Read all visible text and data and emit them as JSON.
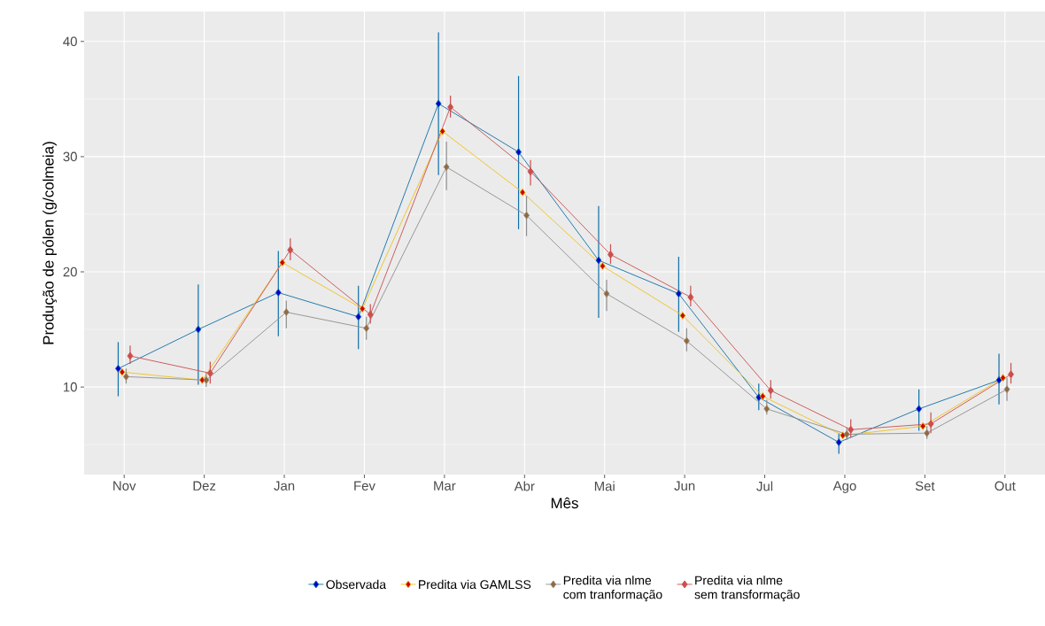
{
  "chart_data": {
    "type": "line",
    "xlabel": "Mês",
    "ylabel": "Produção de pólen (g/colmeia)",
    "categories": [
      "Nov",
      "Dez",
      "Jan",
      "Fev",
      "Mar",
      "Abr",
      "Mai",
      "Jun",
      "Jul",
      "Ago",
      "Set",
      "Out"
    ],
    "series": [
      {
        "name": "Observada",
        "color": "#0f6fa8",
        "values": [
          11.6,
          15.0,
          18.2,
          16.1,
          34.6,
          30.4,
          21.0,
          18.1,
          9.1,
          5.2,
          8.1,
          10.6
        ],
        "errors": [
          [
            9.2,
            13.9
          ],
          [
            10.2,
            18.9
          ],
          [
            14.4,
            21.8
          ],
          [
            13.3,
            18.8
          ],
          [
            28.4,
            40.8
          ],
          [
            23.7,
            37.0
          ],
          [
            16.0,
            25.7
          ],
          [
            14.8,
            21.3
          ],
          [
            8.0,
            10.3
          ],
          [
            4.2,
            6.0
          ],
          [
            6.2,
            9.8
          ],
          [
            8.5,
            12.9
          ]
        ]
      },
      {
        "name": "Predita via GAMLSS",
        "color": "#eec21c",
        "values": [
          11.3,
          10.6,
          20.8,
          16.8,
          32.2,
          26.9,
          20.5,
          16.2,
          9.2,
          5.8,
          6.6,
          10.8
        ]
      },
      {
        "name": "Predita via nlme com tranformação",
        "color": "#8f8f8f",
        "values": [
          10.9,
          10.6,
          16.5,
          15.1,
          29.1,
          24.9,
          18.1,
          14.0,
          8.1,
          5.9,
          6.0,
          9.8
        ],
        "errors": [
          [
            10.3,
            11.6
          ],
          [
            10.0,
            11.3
          ],
          [
            15.1,
            17.5
          ],
          [
            14.1,
            16.1
          ],
          [
            27.1,
            31.3
          ],
          [
            23.1,
            26.6
          ],
          [
            16.6,
            19.3
          ],
          [
            13.1,
            15.1
          ],
          [
            7.6,
            8.9
          ],
          [
            5.4,
            6.5
          ],
          [
            5.5,
            6.6
          ],
          [
            8.8,
            10.8
          ]
        ]
      },
      {
        "name": "Predita via nlme sem transformação",
        "color": "#cc4e4e",
        "values": [
          12.7,
          11.2,
          21.9,
          16.3,
          34.3,
          28.7,
          21.5,
          17.8,
          9.7,
          6.3,
          6.8,
          11.1
        ],
        "errors": [
          [
            12.0,
            13.6
          ],
          [
            10.3,
            12.2
          ],
          [
            21.0,
            22.9
          ],
          [
            15.5,
            17.2
          ],
          [
            33.4,
            35.3
          ],
          [
            27.5,
            29.7
          ],
          [
            20.7,
            22.4
          ],
          [
            17.0,
            18.8
          ],
          [
            9.0,
            10.6
          ],
          [
            5.6,
            7.2
          ],
          [
            6.0,
            7.8
          ],
          [
            10.3,
            12.1
          ]
        ]
      }
    ],
    "ylim": [
      2.4,
      42.6
    ],
    "yticks": [
      10,
      20,
      30,
      40
    ],
    "grid": true,
    "legend": "bottom",
    "marker": "diamond",
    "line_style": "solid"
  }
}
